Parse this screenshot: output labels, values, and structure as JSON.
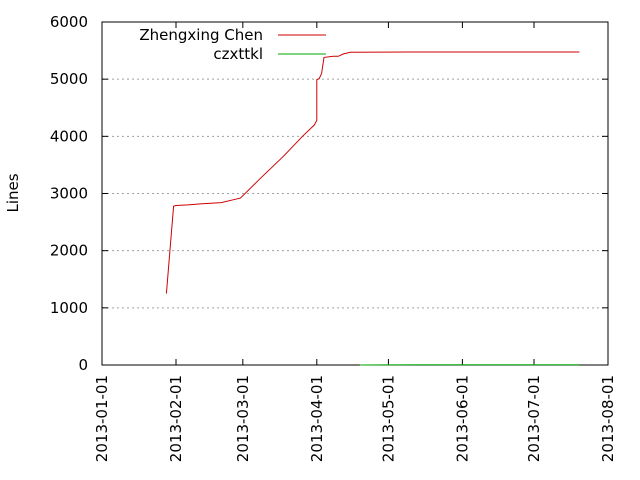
{
  "chart_data": {
    "type": "line",
    "title": "",
    "xlabel": "",
    "ylabel": "Lines",
    "ylim": [
      0,
      6000
    ],
    "yticks": [
      0,
      1000,
      2000,
      3000,
      4000,
      5000,
      6000
    ],
    "xlim": [
      "2013-01-01",
      "2013-08-01"
    ],
    "xticks": [
      "2013-01-01",
      "2013-02-01",
      "2013-03-01",
      "2013-04-01",
      "2013-05-01",
      "2013-06-01",
      "2013-07-01",
      "2013-08-01"
    ],
    "grid": "horizontal",
    "legend_position": "top-left",
    "series": [
      {
        "name": "Zhengxing Chen",
        "color": "#cc0000",
        "points": [
          [
            "2013-01-28",
            1250
          ],
          [
            "2013-01-31",
            2780
          ],
          [
            "2013-02-01",
            2790
          ],
          [
            "2013-02-06",
            2800
          ],
          [
            "2013-02-12",
            2820
          ],
          [
            "2013-02-20",
            2840
          ],
          [
            "2013-02-26",
            2900
          ],
          [
            "2013-02-28",
            2920
          ],
          [
            "2013-03-08",
            3250
          ],
          [
            "2013-03-18",
            3650
          ],
          [
            "2013-03-26",
            4000
          ],
          [
            "2013-03-31",
            4200
          ],
          [
            "2013-04-01",
            4280
          ],
          [
            "2013-04-01",
            4990
          ],
          [
            "2013-04-02",
            5010
          ],
          [
            "2013-04-03",
            5100
          ],
          [
            "2013-04-04",
            5380
          ],
          [
            "2013-04-08",
            5400
          ],
          [
            "2013-04-10",
            5400
          ],
          [
            "2013-04-12",
            5440
          ],
          [
            "2013-04-15",
            5470
          ],
          [
            "2013-05-10",
            5475
          ],
          [
            "2013-06-15",
            5475
          ],
          [
            "2013-07-20",
            5475
          ]
        ]
      },
      {
        "name": "czxttkl",
        "color": "#00aa00",
        "points": [
          [
            "2013-04-19",
            0
          ],
          [
            "2013-05-15",
            5
          ],
          [
            "2013-06-15",
            5
          ],
          [
            "2013-07-20",
            5
          ]
        ]
      }
    ]
  }
}
